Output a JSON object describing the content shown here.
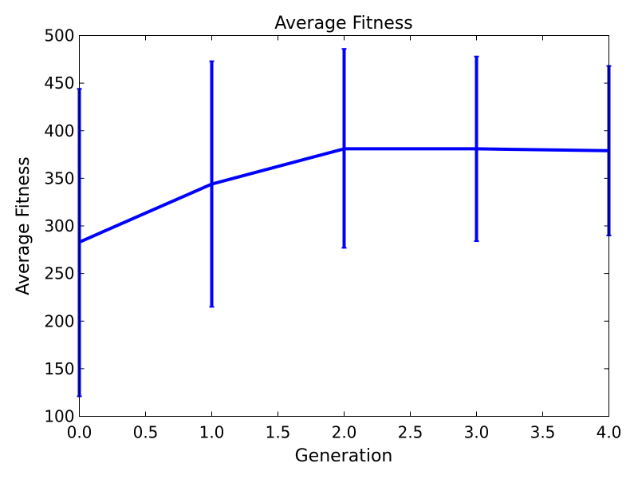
{
  "chart_data": {
    "type": "line",
    "title": "Average Fitness",
    "xlabel": "Generation",
    "ylabel": "Average Fitness",
    "xlim": [
      0.0,
      4.0
    ],
    "ylim": [
      100,
      500
    ],
    "xticks": [
      "0.0",
      "0.5",
      "1.0",
      "1.5",
      "2.0",
      "2.5",
      "3.0",
      "3.5",
      "4.0"
    ],
    "yticks": [
      "100",
      "150",
      "200",
      "250",
      "300",
      "350",
      "400",
      "450",
      "500"
    ],
    "grid": false,
    "legend": "none",
    "series": [
      {
        "color": "#0000ff",
        "points": [
          {
            "x": 0,
            "y": 283,
            "err_low": 121,
            "err_high": 444
          },
          {
            "x": 1,
            "y": 344,
            "err_low": 215,
            "err_high": 473
          },
          {
            "x": 2,
            "y": 381,
            "err_low": 277,
            "err_high": 486
          },
          {
            "x": 3,
            "y": 381,
            "err_low": 284,
            "err_high": 478
          },
          {
            "x": 4,
            "y": 379,
            "err_low": 290,
            "err_high": 468
          }
        ]
      }
    ]
  }
}
